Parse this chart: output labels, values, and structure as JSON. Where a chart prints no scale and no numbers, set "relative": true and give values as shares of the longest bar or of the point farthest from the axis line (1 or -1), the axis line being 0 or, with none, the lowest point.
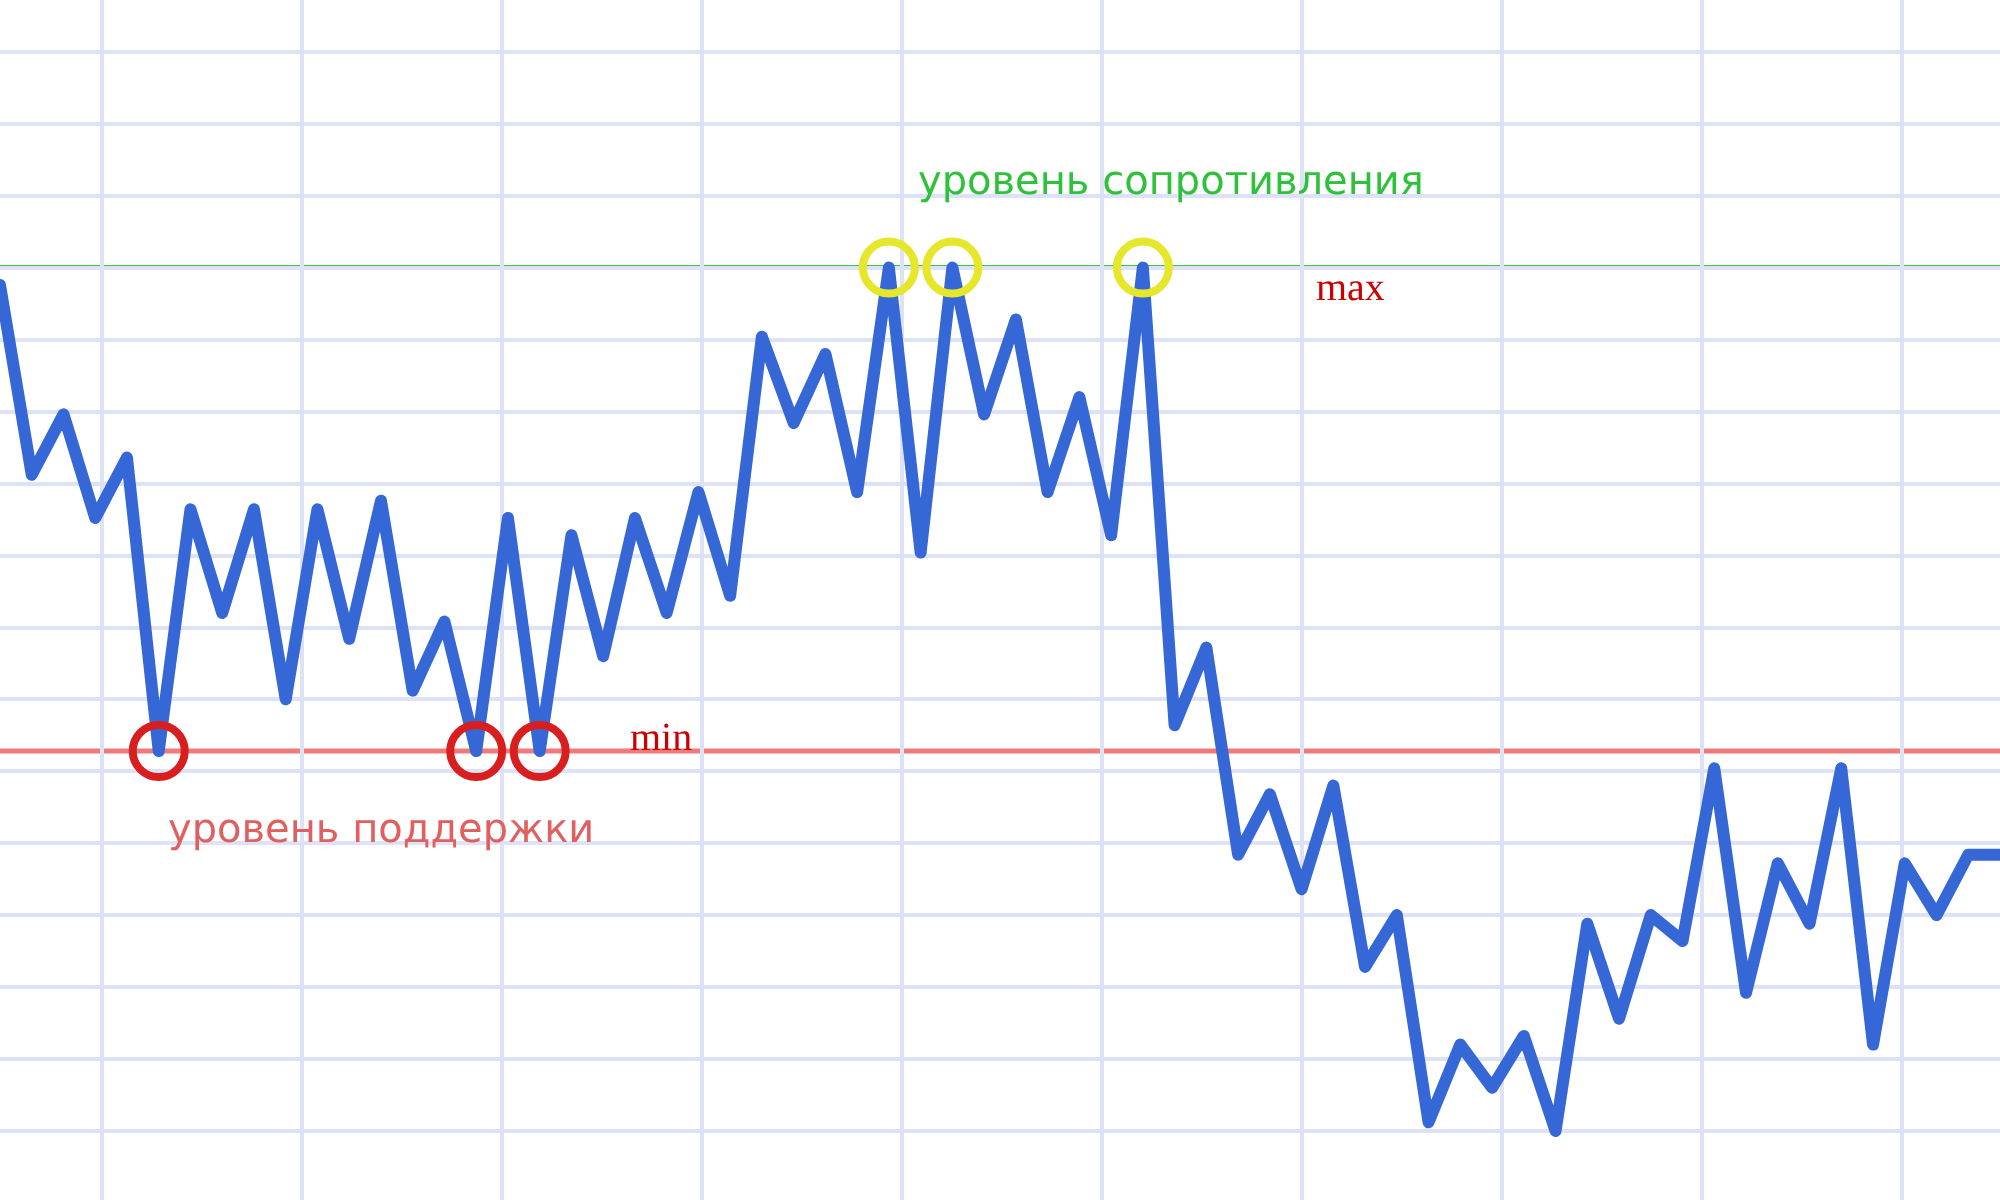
{
  "chart_data": {
    "type": "line",
    "relative": true,
    "grid": true,
    "tick_labels": false,
    "legend": false,
    "marker": "none",
    "line_style": "solid",
    "categories": [
      null,
      null,
      null,
      null,
      null,
      null,
      null,
      null,
      null,
      null,
      null,
      null,
      null,
      null,
      null,
      null,
      null,
      null,
      null,
      null,
      null,
      null,
      null,
      null,
      null,
      null,
      null,
      null,
      null,
      null,
      null,
      null,
      null,
      null,
      null,
      null,
      null,
      null,
      null,
      null,
      null,
      null,
      null,
      null,
      null,
      null,
      null,
      null,
      null,
      null,
      null,
      null,
      null,
      null,
      null,
      null,
      null,
      null,
      null,
      null,
      null,
      null,
      null,
      null
    ],
    "series": [
      {
        "color": "#3567d6",
        "values": [
          0.98,
          0.76,
          0.83,
          0.71,
          0.78,
          0.44,
          0.72,
          0.6,
          0.72,
          0.5,
          0.72,
          0.57,
          0.73,
          0.51,
          0.59,
          0.44,
          0.71,
          0.44,
          0.69,
          0.55,
          0.71,
          0.6,
          0.74,
          0.62,
          0.92,
          0.82,
          0.9,
          0.74,
          1.0,
          0.67,
          1.0,
          0.83,
          0.94,
          0.74,
          0.85,
          0.69,
          1.0,
          0.47,
          0.56,
          0.32,
          0.39,
          0.28,
          0.4,
          0.19,
          0.25,
          0.01,
          0.1,
          0.05,
          0.11,
          0,
          0.24,
          0.13,
          0.25,
          0.22,
          0.42,
          0.16,
          0.31,
          0.24,
          0.42,
          0.1,
          0.31,
          0.25,
          0.32,
          0.32
        ]
      }
    ],
    "ref_lines": [
      {
        "axis": "y",
        "value": 0.44,
        "color": "#f07a7a",
        "line_style": "solid"
      },
      {
        "axis": "y",
        "value": 1.0,
        "color": "#3cc43c",
        "line_style": "solid"
      }
    ],
    "annotations": [
      "уровень сопротивления",
      "max",
      "min",
      "уровень поддержки"
    ]
  }
}
